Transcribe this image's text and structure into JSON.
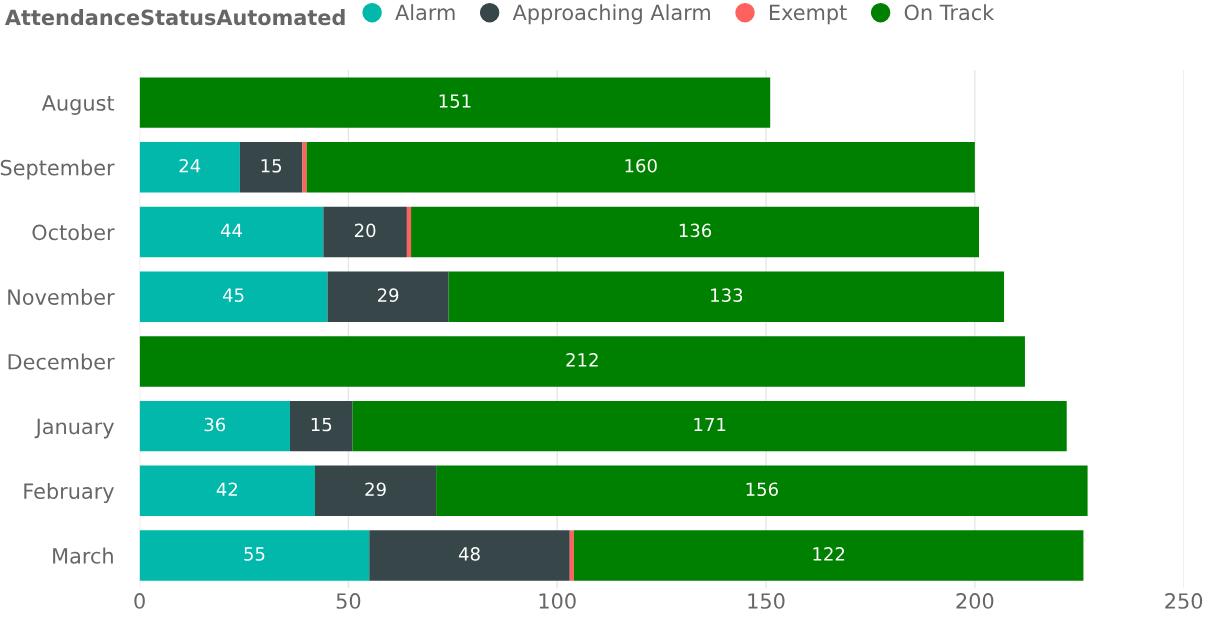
{
  "chart_data": {
    "type": "bar",
    "orientation": "horizontal",
    "stacked": true,
    "categories": [
      "August",
      "September",
      "October",
      "November",
      "December",
      "January",
      "February",
      "March"
    ],
    "legend_title": "AttendanceStatusAutomated",
    "series": [
      {
        "name": "Alarm",
        "color": "#01b8aa",
        "values": [
          null,
          24,
          44,
          45,
          null,
          36,
          42,
          55
        ],
        "value_labels": [
          null,
          "24",
          "44",
          "45",
          null,
          "36",
          "42",
          "55"
        ]
      },
      {
        "name": "Approaching Alarm",
        "color": "#374649",
        "values": [
          null,
          15,
          20,
          29,
          null,
          15,
          29,
          48
        ],
        "value_labels": [
          null,
          "15",
          "20",
          "29",
          null,
          "15",
          "29",
          "48"
        ]
      },
      {
        "name": "Exempt",
        "color": "#fd625e",
        "values": [
          null,
          1,
          1,
          null,
          null,
          null,
          null,
          1
        ],
        "value_labels": [
          null,
          null,
          null,
          null,
          null,
          null,
          null,
          null
        ]
      },
      {
        "name": "On Track",
        "color": "#008000",
        "values": [
          151,
          160,
          136,
          133,
          212,
          171,
          156,
          122
        ],
        "value_labels": [
          "151",
          "160",
          "136",
          "133",
          "212",
          "171",
          "156",
          "122"
        ]
      }
    ],
    "xlim": [
      0,
      250
    ],
    "xticks": [
      0,
      50,
      100,
      150,
      200,
      250
    ],
    "grid": "x",
    "legend": "top left"
  }
}
